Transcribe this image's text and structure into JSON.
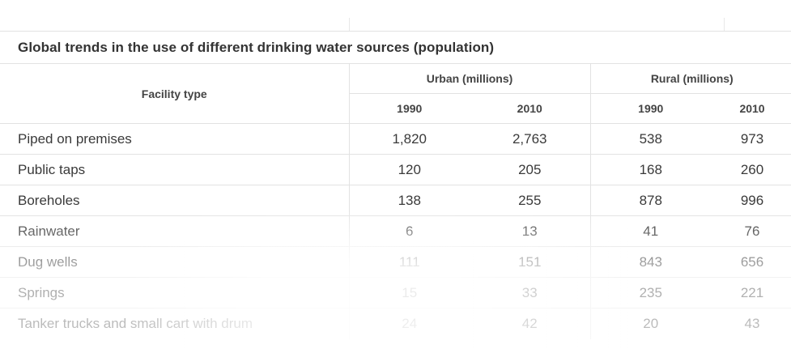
{
  "chart_data": {
    "type": "table",
    "title": "Global trends in the use of different drinking water sources (population)",
    "row_header": "Facility type",
    "column_groups": [
      {
        "name": "Urban (millions)",
        "years": [
          "1990",
          "2010"
        ]
      },
      {
        "name": "Rural (millions)",
        "years": [
          "1990",
          "2010"
        ]
      }
    ],
    "rows": [
      {
        "label": "Piped on premises",
        "values": [
          "1,820",
          "2,763",
          "538",
          "973"
        ]
      },
      {
        "label": "Public taps",
        "values": [
          "120",
          "205",
          "168",
          "260"
        ]
      },
      {
        "label": "Boreholes",
        "values": [
          "138",
          "255",
          "878",
          "996"
        ]
      },
      {
        "label": "Rainwater",
        "values": [
          "6",
          "13",
          "41",
          "76"
        ]
      },
      {
        "label": "Dug wells",
        "values": [
          "111",
          "151",
          "843",
          "656"
        ]
      },
      {
        "label": "Springs",
        "values": [
          "15",
          "33",
          "235",
          "221"
        ]
      },
      {
        "label": "Tanker trucks and small cart with drum",
        "values": [
          "24",
          "42",
          "20",
          "43"
        ]
      }
    ]
  },
  "colors": {
    "text": "#3a3a3a",
    "grid": "#e2e2e2"
  }
}
